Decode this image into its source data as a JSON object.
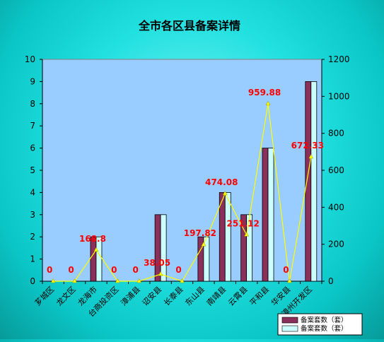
{
  "chart_data": {
    "type": "bar+line",
    "title": "全市各区县备案详情",
    "categories": [
      "芗城区",
      "龙文区",
      "龙海市",
      "台商投资区",
      "漳浦县",
      "诏安县",
      "长泰县",
      "东山县",
      "南靖县",
      "云霄县",
      "平和县",
      "华安县",
      "漳州开发区"
    ],
    "series": [
      {
        "name": "备案套数（套）",
        "type": "bar",
        "axis": "left",
        "color": "#8b2f5b",
        "values": [
          0,
          0,
          2,
          0,
          0,
          3,
          0,
          2,
          4,
          3,
          6,
          0,
          9
        ]
      },
      {
        "name": "备案套数（套）",
        "type": "bar",
        "axis": "left",
        "color": "#ccffff",
        "values": [
          0,
          0,
          2,
          0,
          0,
          3,
          0,
          2,
          4,
          3,
          6,
          0,
          9
        ]
      },
      {
        "name": "",
        "type": "line",
        "axis": "right",
        "color": "#ffff00",
        "values": [
          0,
          0,
          168.8,
          0,
          0,
          38.05,
          0,
          197.82,
          474.08,
          251.12,
          959.88,
          0,
          672.33
        ]
      }
    ],
    "data_labels": [
      "0",
      "0",
      "168.8",
      "0",
      "0",
      "38.05",
      "0",
      "197.82",
      "474.08",
      "251.12",
      "959.88",
      "0",
      "672.33"
    ],
    "ylim_left": [
      0,
      10
    ],
    "yticks_left": [
      0,
      1,
      2,
      3,
      4,
      5,
      6,
      7,
      8,
      9,
      10
    ],
    "ylim_right": [
      0,
      1200
    ],
    "yticks_right": [
      0,
      200,
      400,
      600,
      800,
      1000,
      1200
    ],
    "legend_position": "bottom-right",
    "grid": false
  }
}
